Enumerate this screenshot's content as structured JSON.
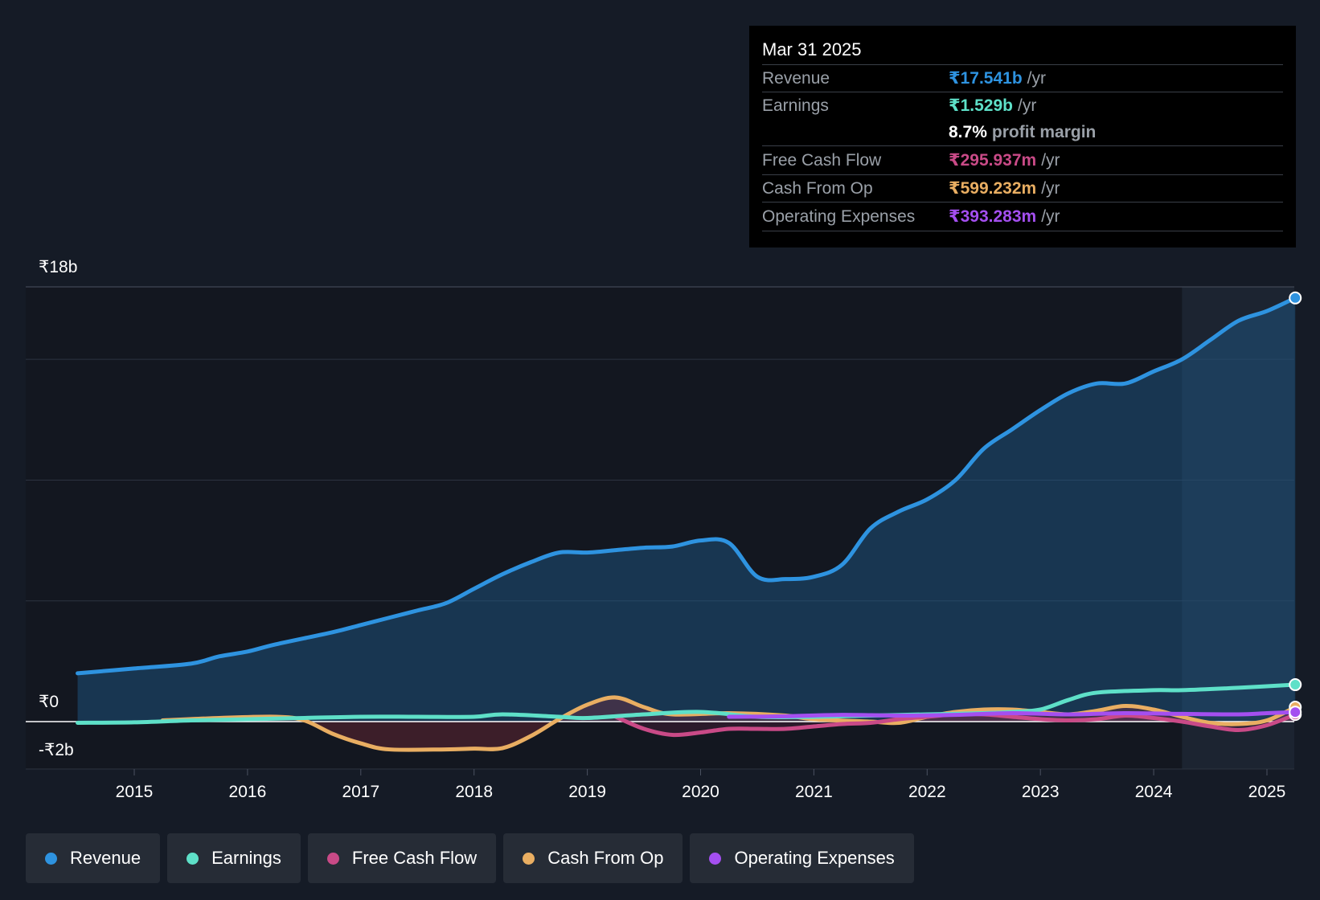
{
  "chart_data": {
    "type": "line",
    "ylim": [
      -2,
      18
    ],
    "y_labels": [
      "₹18b",
      "₹0",
      "-₹2b"
    ],
    "x_ticks": [
      "2015",
      "2016",
      "2017",
      "2018",
      "2019",
      "2020",
      "2021",
      "2022",
      "2023",
      "2024",
      "2025"
    ],
    "forecast_shade_start": 2024.25,
    "series": [
      {
        "name": "Revenue",
        "color": "#2e93e0",
        "area": true,
        "points": [
          [
            2014.5,
            2.0
          ],
          [
            2015.0,
            2.2
          ],
          [
            2015.5,
            2.4
          ],
          [
            2015.75,
            2.7
          ],
          [
            2016.0,
            2.9
          ],
          [
            2016.25,
            3.2
          ],
          [
            2016.75,
            3.7
          ],
          [
            2017.0,
            4.0
          ],
          [
            2017.25,
            4.3
          ],
          [
            2017.5,
            4.6
          ],
          [
            2017.75,
            4.9
          ],
          [
            2018.0,
            5.5
          ],
          [
            2018.25,
            6.1
          ],
          [
            2018.5,
            6.6
          ],
          [
            2018.75,
            7.0
          ],
          [
            2019.0,
            7.0
          ],
          [
            2019.25,
            7.1
          ],
          [
            2019.5,
            7.2
          ],
          [
            2019.75,
            7.25
          ],
          [
            2020.0,
            7.5
          ],
          [
            2020.25,
            7.4
          ],
          [
            2020.5,
            6.0
          ],
          [
            2020.75,
            5.9
          ],
          [
            2021.0,
            6.0
          ],
          [
            2021.25,
            6.5
          ],
          [
            2021.5,
            8.0
          ],
          [
            2021.75,
            8.7
          ],
          [
            2022.0,
            9.2
          ],
          [
            2022.25,
            10.0
          ],
          [
            2022.5,
            11.3
          ],
          [
            2022.75,
            12.1
          ],
          [
            2023.0,
            12.9
          ],
          [
            2023.25,
            13.6
          ],
          [
            2023.5,
            14.0
          ],
          [
            2023.75,
            14.0
          ],
          [
            2024.0,
            14.5
          ],
          [
            2024.25,
            15.0
          ],
          [
            2024.5,
            15.8
          ],
          [
            2024.75,
            16.6
          ],
          [
            2025.0,
            17.0
          ],
          [
            2025.25,
            17.541
          ]
        ]
      },
      {
        "name": "Earnings",
        "color": "#5ee0c8",
        "area": false,
        "points": [
          [
            2014.5,
            -0.05
          ],
          [
            2015.0,
            -0.03
          ],
          [
            2015.5,
            0.05
          ],
          [
            2016.0,
            0.1
          ],
          [
            2016.5,
            0.15
          ],
          [
            2017.0,
            0.2
          ],
          [
            2017.5,
            0.2
          ],
          [
            2018.0,
            0.2
          ],
          [
            2018.25,
            0.3
          ],
          [
            2018.75,
            0.2
          ],
          [
            2019.0,
            0.15
          ],
          [
            2019.5,
            0.3
          ],
          [
            2020.0,
            0.4
          ],
          [
            2020.5,
            0.2
          ],
          [
            2021.0,
            0.2
          ],
          [
            2021.5,
            0.25
          ],
          [
            2022.0,
            0.3
          ],
          [
            2022.5,
            0.35
          ],
          [
            2022.75,
            0.4
          ],
          [
            2023.0,
            0.5
          ],
          [
            2023.25,
            0.9
          ],
          [
            2023.5,
            1.2
          ],
          [
            2024.0,
            1.3
          ],
          [
            2024.25,
            1.3
          ],
          [
            2024.75,
            1.4
          ],
          [
            2025.25,
            1.529
          ]
        ]
      },
      {
        "name": "Free Cash Flow",
        "color": "#c94a87",
        "area": true,
        "points": [
          [
            2019.25,
            0.2
          ],
          [
            2019.5,
            -0.3
          ],
          [
            2019.75,
            -0.55
          ],
          [
            2020.0,
            -0.45
          ],
          [
            2020.25,
            -0.3
          ],
          [
            2020.5,
            -0.3
          ],
          [
            2020.75,
            -0.3
          ],
          [
            2021.0,
            -0.2
          ],
          [
            2021.25,
            -0.1
          ],
          [
            2021.5,
            -0.05
          ],
          [
            2021.75,
            0.1
          ],
          [
            2022.0,
            0.2
          ],
          [
            2022.25,
            0.3
          ],
          [
            2022.5,
            0.3
          ],
          [
            2022.75,
            0.2
          ],
          [
            2023.0,
            0.1
          ],
          [
            2023.25,
            0.05
          ],
          [
            2023.5,
            0.1
          ],
          [
            2023.75,
            0.25
          ],
          [
            2024.0,
            0.15
          ],
          [
            2024.25,
            0.0
          ],
          [
            2024.5,
            -0.2
          ],
          [
            2024.75,
            -0.35
          ],
          [
            2025.0,
            -0.15
          ],
          [
            2025.25,
            0.296
          ]
        ]
      },
      {
        "name": "Cash From Op",
        "color": "#e9ae62",
        "area": true,
        "points": [
          [
            2015.25,
            0.05
          ],
          [
            2015.75,
            0.15
          ],
          [
            2016.25,
            0.2
          ],
          [
            2016.5,
            0.05
          ],
          [
            2016.75,
            -0.5
          ],
          [
            2017.0,
            -0.9
          ],
          [
            2017.25,
            -1.15
          ],
          [
            2017.75,
            -1.15
          ],
          [
            2018.0,
            -1.12
          ],
          [
            2018.25,
            -1.1
          ],
          [
            2018.5,
            -0.6
          ],
          [
            2018.75,
            0.1
          ],
          [
            2019.0,
            0.7
          ],
          [
            2019.25,
            1.0
          ],
          [
            2019.5,
            0.6
          ],
          [
            2019.75,
            0.3
          ],
          [
            2020.25,
            0.35
          ],
          [
            2020.75,
            0.25
          ],
          [
            2021.0,
            0.1
          ],
          [
            2021.5,
            0.0
          ],
          [
            2021.75,
            -0.05
          ],
          [
            2022.0,
            0.2
          ],
          [
            2022.25,
            0.4
          ],
          [
            2022.5,
            0.5
          ],
          [
            2022.75,
            0.5
          ],
          [
            2023.0,
            0.4
          ],
          [
            2023.25,
            0.3
          ],
          [
            2023.5,
            0.45
          ],
          [
            2023.75,
            0.65
          ],
          [
            2024.0,
            0.5
          ],
          [
            2024.25,
            0.2
          ],
          [
            2024.5,
            -0.05
          ],
          [
            2024.75,
            -0.1
          ],
          [
            2025.0,
            0.05
          ],
          [
            2025.25,
            0.599
          ]
        ]
      },
      {
        "name": "Operating Expenses",
        "color": "#a44ff0",
        "area": false,
        "points": [
          [
            2020.25,
            0.2
          ],
          [
            2020.75,
            0.22
          ],
          [
            2021.25,
            0.28
          ],
          [
            2021.75,
            0.25
          ],
          [
            2022.25,
            0.28
          ],
          [
            2022.75,
            0.35
          ],
          [
            2023.25,
            0.3
          ],
          [
            2023.75,
            0.35
          ],
          [
            2024.25,
            0.32
          ],
          [
            2024.75,
            0.3
          ],
          [
            2025.0,
            0.35
          ],
          [
            2025.25,
            0.393
          ]
        ]
      }
    ]
  },
  "tooltip": {
    "date": "Mar 31 2025",
    "revenue": {
      "label": "Revenue",
      "value": "₹17.541b",
      "unit": "/yr",
      "color": "#2e93e0"
    },
    "earnings": {
      "label": "Earnings",
      "value": "₹1.529b",
      "unit": "/yr",
      "color": "#5ee0c8"
    },
    "margin": {
      "value": "8.7%",
      "text": "profit margin"
    },
    "fcf": {
      "label": "Free Cash Flow",
      "value": "₹295.937m",
      "unit": "/yr",
      "color": "#c94a87"
    },
    "cfo": {
      "label": "Cash From Op",
      "value": "₹599.232m",
      "unit": "/yr",
      "color": "#e9ae62"
    },
    "opex": {
      "label": "Operating Expenses",
      "value": "₹393.283m",
      "unit": "/yr",
      "color": "#a44ff0"
    }
  },
  "legend": [
    {
      "label": "Revenue",
      "color": "#2e93e0"
    },
    {
      "label": "Earnings",
      "color": "#5ee0c8"
    },
    {
      "label": "Free Cash Flow",
      "color": "#c94a87"
    },
    {
      "label": "Cash From Op",
      "color": "#e9ae62"
    },
    {
      "label": "Operating Expenses",
      "color": "#a44ff0"
    }
  ]
}
